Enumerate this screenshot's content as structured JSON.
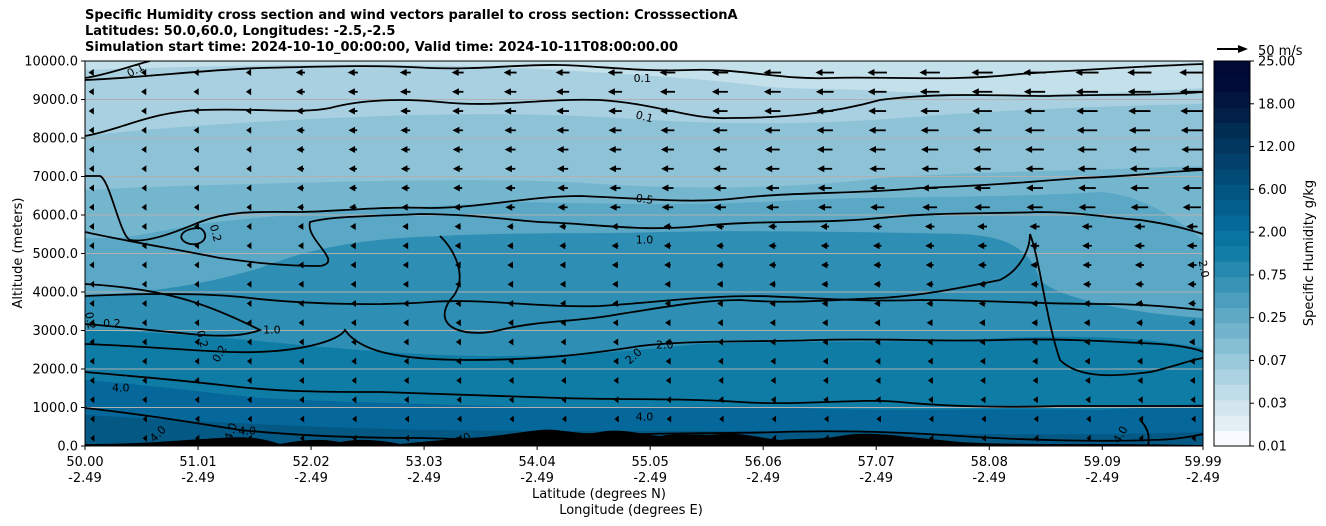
{
  "chart_data": {
    "type": "heatmap",
    "title_lines": [
      "Specific Humidity cross section and wind vectors parallel to cross section: CrosssectionA",
      "Latitudes: 50.0,60.0, Longitudes: -2.5,-2.5",
      "Simulation start time: 2024-10-10_00:00:00, Valid time: 2024-10-11T08:00:00.00"
    ],
    "xlabel_lines": [
      "Latitude (degrees N)",
      "Longitude (degrees E)"
    ],
    "ylabel": "Altitude (meters)",
    "x_ticks": [
      {
        "lat": "50.00",
        "lon": "-2.49",
        "v": 50.0
      },
      {
        "lat": "51.01",
        "lon": "-2.49",
        "v": 51.01
      },
      {
        "lat": "52.02",
        "lon": "-2.49",
        "v": 52.02
      },
      {
        "lat": "53.03",
        "lon": "-2.49",
        "v": 53.03
      },
      {
        "lat": "54.04",
        "lon": "-2.49",
        "v": 54.04
      },
      {
        "lat": "55.05",
        "lon": "-2.49",
        "v": 55.05
      },
      {
        "lat": "56.06",
        "lon": "-2.49",
        "v": 56.06
      },
      {
        "lat": "57.07",
        "lon": "-2.49",
        "v": 57.07
      },
      {
        "lat": "58.08",
        "lon": "-2.49",
        "v": 58.08
      },
      {
        "lat": "59.09",
        "lon": "-2.49",
        "v": 59.09
      },
      {
        "lat": "59.99",
        "lon": "-2.49",
        "v": 59.99
      }
    ],
    "xlim": [
      50.0,
      59.99
    ],
    "y_ticks": [
      "0.0",
      "1000.0",
      "2000.0",
      "3000.0",
      "4000.0",
      "5000.0",
      "6000.0",
      "7000.0",
      "8000.0",
      "9000.0",
      "10000.0"
    ],
    "ylim": [
      0,
      10000
    ],
    "grid": "horizontal",
    "colorbar": {
      "label": "Specific Humidity g/kg",
      "tick_labels": [
        "0.01",
        "0.03",
        "0.07",
        "0.25",
        "0.75",
        "2.00",
        "6.00",
        "12.00",
        "18.00",
        "25.00"
      ],
      "level_colors": [
        "#f7fbff",
        "#e4eff5",
        "#d2e6ee",
        "#bfdde8",
        "#acd3e2",
        "#99c9db",
        "#86bfd4",
        "#72b4cd",
        "#5fa9c5",
        "#4c9ebe",
        "#3893b6",
        "#2588ae",
        "#127ea7",
        "#0a74a0",
        "#066a98",
        "#045f8e",
        "#035582",
        "#024b76",
        "#02416b",
        "#02375f",
        "#022d53",
        "#021f47",
        "#01153e",
        "#010c38",
        "#000a35"
      ]
    },
    "quiver_key": {
      "label": "50 m/s",
      "speed": 50
    },
    "contour_labels": [
      {
        "text": "0.1",
        "lat": 50.45,
        "alt": 9770,
        "rot": -28
      },
      {
        "text": "0.1",
        "lat": 54.98,
        "alt": 9560,
        "rot": 0
      },
      {
        "text": "0.1",
        "lat": 55.0,
        "alt": 8560,
        "rot": 15
      },
      {
        "text": "0.5",
        "lat": 55.0,
        "alt": 6420,
        "rot": 8
      },
      {
        "text": "1.0",
        "lat": 55.0,
        "alt": 5370,
        "rot": 0
      },
      {
        "text": "0.2",
        "lat": 51.17,
        "alt": 5530,
        "rot": 75
      },
      {
        "text": "0.2",
        "lat": 50.05,
        "alt": 3260,
        "rot": 80
      },
      {
        "text": "0.2",
        "lat": 50.24,
        "alt": 3190,
        "rot": 0
      },
      {
        "text": "1.0",
        "lat": 51.67,
        "alt": 3030,
        "rot": 0
      },
      {
        "text": "0.2",
        "lat": 51.05,
        "alt": 2780,
        "rot": 75
      },
      {
        "text": "0.2",
        "lat": 51.2,
        "alt": 2400,
        "rot": -60
      },
      {
        "text": "4.0",
        "lat": 50.32,
        "alt": 1520,
        "rot": 0
      },
      {
        "text": "2.0",
        "lat": 54.9,
        "alt": 2340,
        "rot": -42
      },
      {
        "text": "2.0",
        "lat": 55.18,
        "alt": 2630,
        "rot": 0
      },
      {
        "text": "4.0",
        "lat": 55.0,
        "alt": 760,
        "rot": 0
      },
      {
        "text": "4.0",
        "lat": 50.65,
        "alt": 320,
        "rot": -45
      },
      {
        "text": "4.0",
        "lat": 51.3,
        "alt": 380,
        "rot": -70
      },
      {
        "text": "4.0",
        "lat": 51.45,
        "alt": 400,
        "rot": 0
      },
      {
        "text": "4.0",
        "lat": 53.37,
        "alt": 180,
        "rot": -25
      },
      {
        "text": "2.0",
        "lat": 60.0,
        "alt": 4600,
        "rot": 80
      },
      {
        "text": "4.0",
        "lat": 59.25,
        "alt": 300,
        "rot": -60
      }
    ]
  }
}
